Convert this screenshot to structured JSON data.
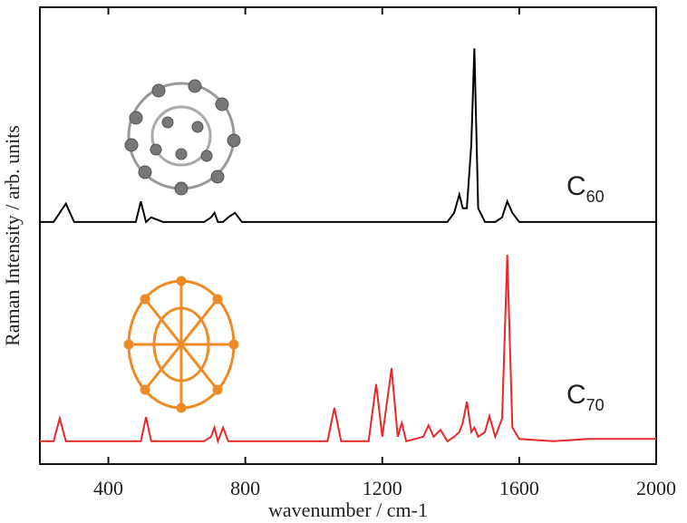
{
  "chart_data": {
    "type": "line",
    "x_label": "wavenumber / cm-1",
    "y_label": "Raman Intensity / arb. units",
    "x": [
      200,
      240,
      258,
      276,
      300,
      400,
      480,
      495,
      510,
      525,
      560,
      680,
      700,
      710,
      720,
      735,
      750,
      770,
      790,
      900,
      1040,
      1060,
      1080,
      1160,
      1182,
      1200,
      1227,
      1245,
      1257,
      1270,
      1320,
      1335,
      1350,
      1370,
      1390,
      1410,
      1425,
      1435,
      1447,
      1460,
      1469,
      1480,
      1500,
      1513,
      1530,
      1550,
      1565,
      1580,
      1600,
      1700,
      1800,
      2000
    ],
    "series": [
      {
        "color": "#000000",
        "values": [
          53,
          53,
          55,
          57,
          53,
          53,
          53,
          57.5,
          53,
          54,
          53,
          53,
          54,
          55,
          53,
          53,
          54,
          55,
          53,
          53,
          53,
          53,
          53,
          53,
          53,
          53,
          53,
          53,
          53,
          53,
          53,
          53,
          53,
          53,
          53,
          55,
          59,
          56,
          56,
          70,
          91,
          56,
          53,
          53,
          53,
          54,
          57.5,
          55,
          53,
          53,
          53,
          53
        ]
      },
      {
        "color": "#e8282a",
        "values": [
          5,
          5,
          10,
          5,
          5,
          5,
          5,
          5,
          10.3,
          5,
          5,
          5,
          6,
          8,
          5,
          8,
          5,
          5,
          5,
          5,
          5,
          12.3,
          5,
          5,
          17.5,
          6,
          21,
          6,
          9,
          5,
          6,
          8.5,
          6,
          7.5,
          5,
          6,
          7,
          9,
          13.7,
          7,
          8,
          6,
          7,
          10.5,
          6,
          10,
          45.8,
          8,
          5.5,
          5,
          5.5,
          5.5
        ]
      }
    ],
    "annotations": [
      {
        "text": "C",
        "subscript": "60"
      },
      {
        "text": "C",
        "subscript": "70"
      }
    ],
    "xlim": [
      200,
      2000
    ],
    "ylim": [
      0,
      100
    ],
    "xticks": [
      400,
      800,
      1200,
      1600,
      2000
    ]
  }
}
